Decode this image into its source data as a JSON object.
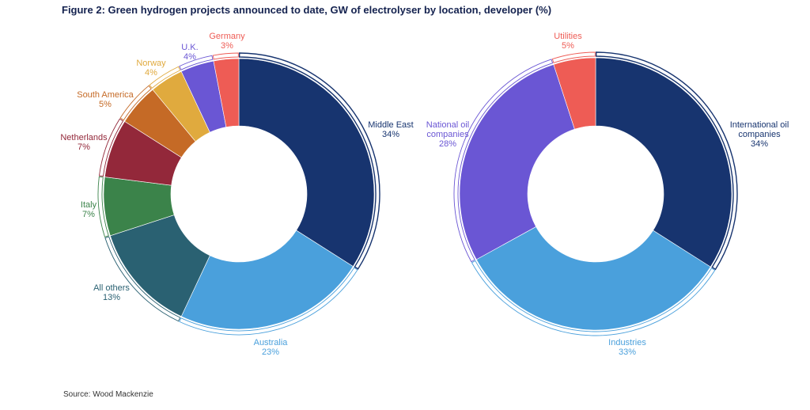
{
  "title": "Figure 2: Green hydrogen projects announced to date, GW of electrolyser by location, developer (%)",
  "source": "Source: Wood Mackenzie",
  "chart_data": [
    {
      "type": "pie",
      "subtype": "donut",
      "unit": "%",
      "slices": [
        {
          "label": "Middle East",
          "value": 34,
          "color": "#17346f"
        },
        {
          "label": "Australia",
          "value": 23,
          "color": "#4aa0dc"
        },
        {
          "label": "All others",
          "value": 13,
          "color": "#2a6172"
        },
        {
          "label": "Italy",
          "value": 7,
          "color": "#3b834a"
        },
        {
          "label": "Netherlands",
          "value": 7,
          "color": "#93283a"
        },
        {
          "label": "South America",
          "value": 5,
          "color": "#c56a26"
        },
        {
          "label": "Norway",
          "value": 4,
          "color": "#e0aa3e"
        },
        {
          "label": "U.K.",
          "value": 4,
          "color": "#6a56d4"
        },
        {
          "label": "Germany",
          "value": 3,
          "color": "#ee5c55"
        }
      ]
    },
    {
      "type": "pie",
      "subtype": "donut",
      "unit": "%",
      "slices": [
        {
          "label": "International oil companies",
          "value": 34,
          "color": "#17346f"
        },
        {
          "label": "Industries",
          "value": 33,
          "color": "#4aa0dc"
        },
        {
          "label": "National oil companies",
          "value": 28,
          "color": "#6a56d4"
        },
        {
          "label": "Utilities",
          "value": 5,
          "color": "#ee5c55"
        }
      ]
    }
  ]
}
